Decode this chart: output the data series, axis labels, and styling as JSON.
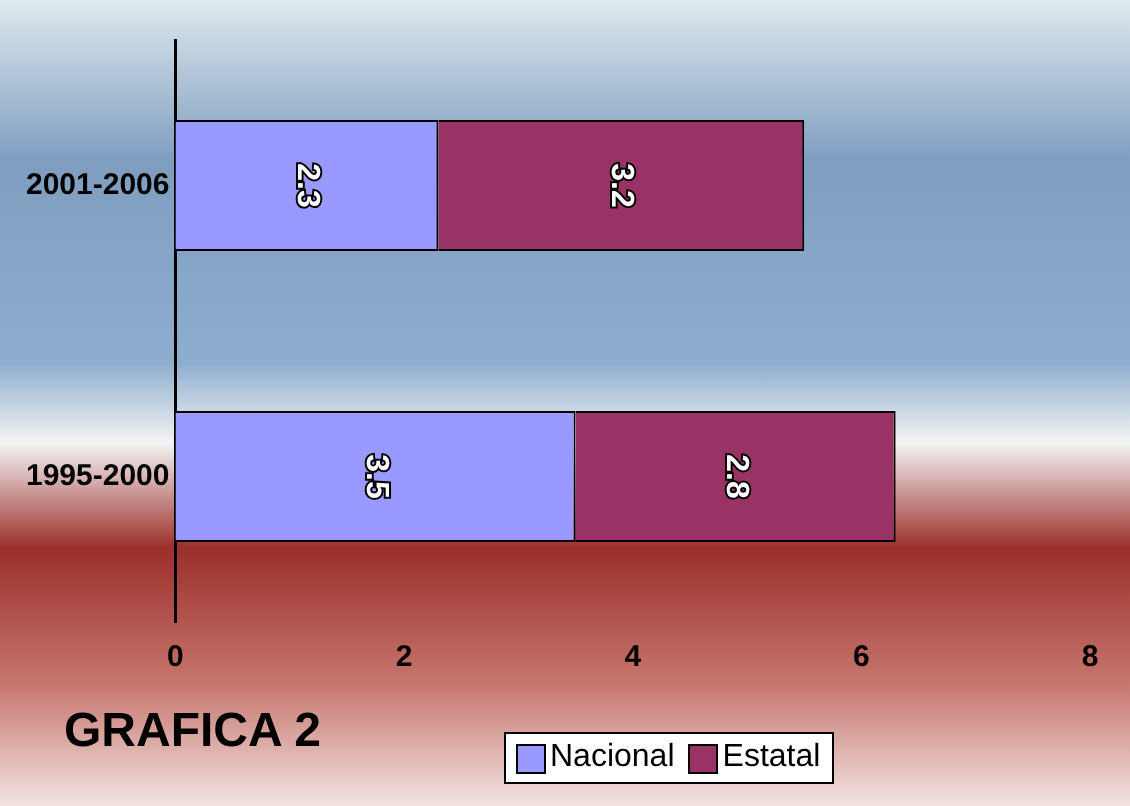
{
  "chart_data": {
    "type": "bar",
    "orientation": "horizontal",
    "stacked": true,
    "title": "GRAFICA 2",
    "categories": [
      "2001-2006",
      "1995-2000"
    ],
    "series": [
      {
        "name": "Nacional",
        "color": "#9999ff",
        "values": [
          2.3,
          3.5
        ]
      },
      {
        "name": "Estatal",
        "color": "#993366",
        "values": [
          3.2,
          2.8
        ]
      }
    ],
    "xlim": [
      0,
      8
    ],
    "xticks": [
      0,
      2,
      4,
      6,
      8
    ],
    "data_labels": true,
    "grid": false,
    "legend": "bottom right"
  }
}
